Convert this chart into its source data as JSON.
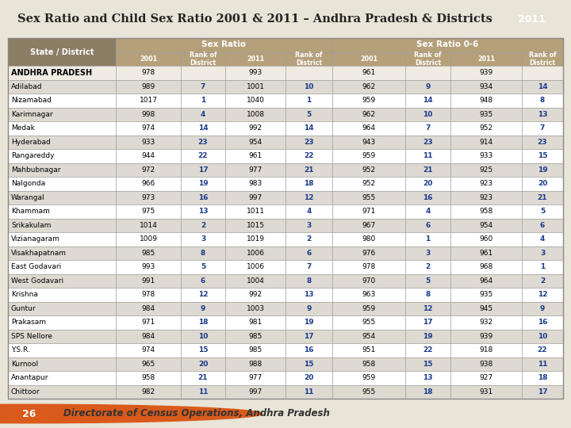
{
  "title": "Sex Ratio and Child Sex Ratio 2001 & 2011 – Andhra Pradesh & Districts",
  "footer": "Directorate of Census Operations, Andhra Pradesh",
  "page_num": "26",
  "districts": [
    "ANDHRA PRADESH",
    "Adilabad",
    "Nizamabad",
    "Karimnagar",
    "Medak",
    "Hyderabad",
    "Rangareddy",
    "Mahbubnagar",
    "Nalgonda",
    "Warangal",
    "Khammam",
    "Srikakulam",
    "Vizianagaram",
    "Visakhapatnam",
    "East Godavari",
    "West Godavari",
    "Krishna",
    "Guntur",
    "Prakasam",
    "SPS Nellore",
    "Y.S.R.",
    "Kurnool",
    "Anantapur",
    "Chittoor"
  ],
  "data": [
    [
      978,
      "",
      993,
      "",
      961,
      "",
      939,
      ""
    ],
    [
      989,
      7,
      1001,
      10,
      962,
      9,
      934,
      14
    ],
    [
      1017,
      1,
      1040,
      1,
      959,
      14,
      948,
      8
    ],
    [
      998,
      4,
      1008,
      5,
      962,
      10,
      935,
      13
    ],
    [
      974,
      14,
      992,
      14,
      964,
      7,
      952,
      7
    ],
    [
      933,
      23,
      954,
      23,
      943,
      23,
      914,
      23
    ],
    [
      944,
      22,
      961,
      22,
      959,
      11,
      933,
      15
    ],
    [
      972,
      17,
      977,
      21,
      952,
      21,
      925,
      19
    ],
    [
      966,
      19,
      983,
      18,
      952,
      20,
      923,
      20
    ],
    [
      973,
      16,
      997,
      12,
      955,
      16,
      923,
      21
    ],
    [
      975,
      13,
      1011,
      4,
      971,
      4,
      958,
      5
    ],
    [
      1014,
      2,
      1015,
      3,
      967,
      6,
      954,
      6
    ],
    [
      1009,
      3,
      1019,
      2,
      980,
      1,
      960,
      4
    ],
    [
      985,
      8,
      1006,
      6,
      976,
      3,
      961,
      3
    ],
    [
      993,
      5,
      1006,
      7,
      978,
      2,
      968,
      1
    ],
    [
      991,
      6,
      1004,
      8,
      970,
      5,
      964,
      2
    ],
    [
      978,
      12,
      992,
      13,
      963,
      8,
      935,
      12
    ],
    [
      984,
      9,
      1003,
      9,
      959,
      12,
      945,
      9
    ],
    [
      971,
      18,
      981,
      19,
      955,
      17,
      932,
      16
    ],
    [
      984,
      10,
      985,
      17,
      954,
      19,
      939,
      10
    ],
    [
      974,
      15,
      985,
      16,
      951,
      22,
      918,
      22
    ],
    [
      965,
      20,
      988,
      15,
      958,
      15,
      938,
      11
    ],
    [
      958,
      21,
      977,
      20,
      959,
      13,
      927,
      18
    ],
    [
      982,
      11,
      997,
      11,
      955,
      18,
      931,
      17
    ]
  ],
  "header_bg": "#b5a07a",
  "subheader_bg": "#b5a07a",
  "state_district_header_bg": "#8c7d65",
  "row_bg_odd": "#ffffff",
  "row_bg_even": "#dedad2",
  "rank_color": "#1a3a8c",
  "normal_color": "#000000",
  "state_row_bg": "#f0ece4",
  "bg_color": "#e8e4d8",
  "title_color": "#222222",
  "badge_bg": "#b5a07a",
  "footer_circle_color": "#d95a1a",
  "footer_text_color": "#333333"
}
